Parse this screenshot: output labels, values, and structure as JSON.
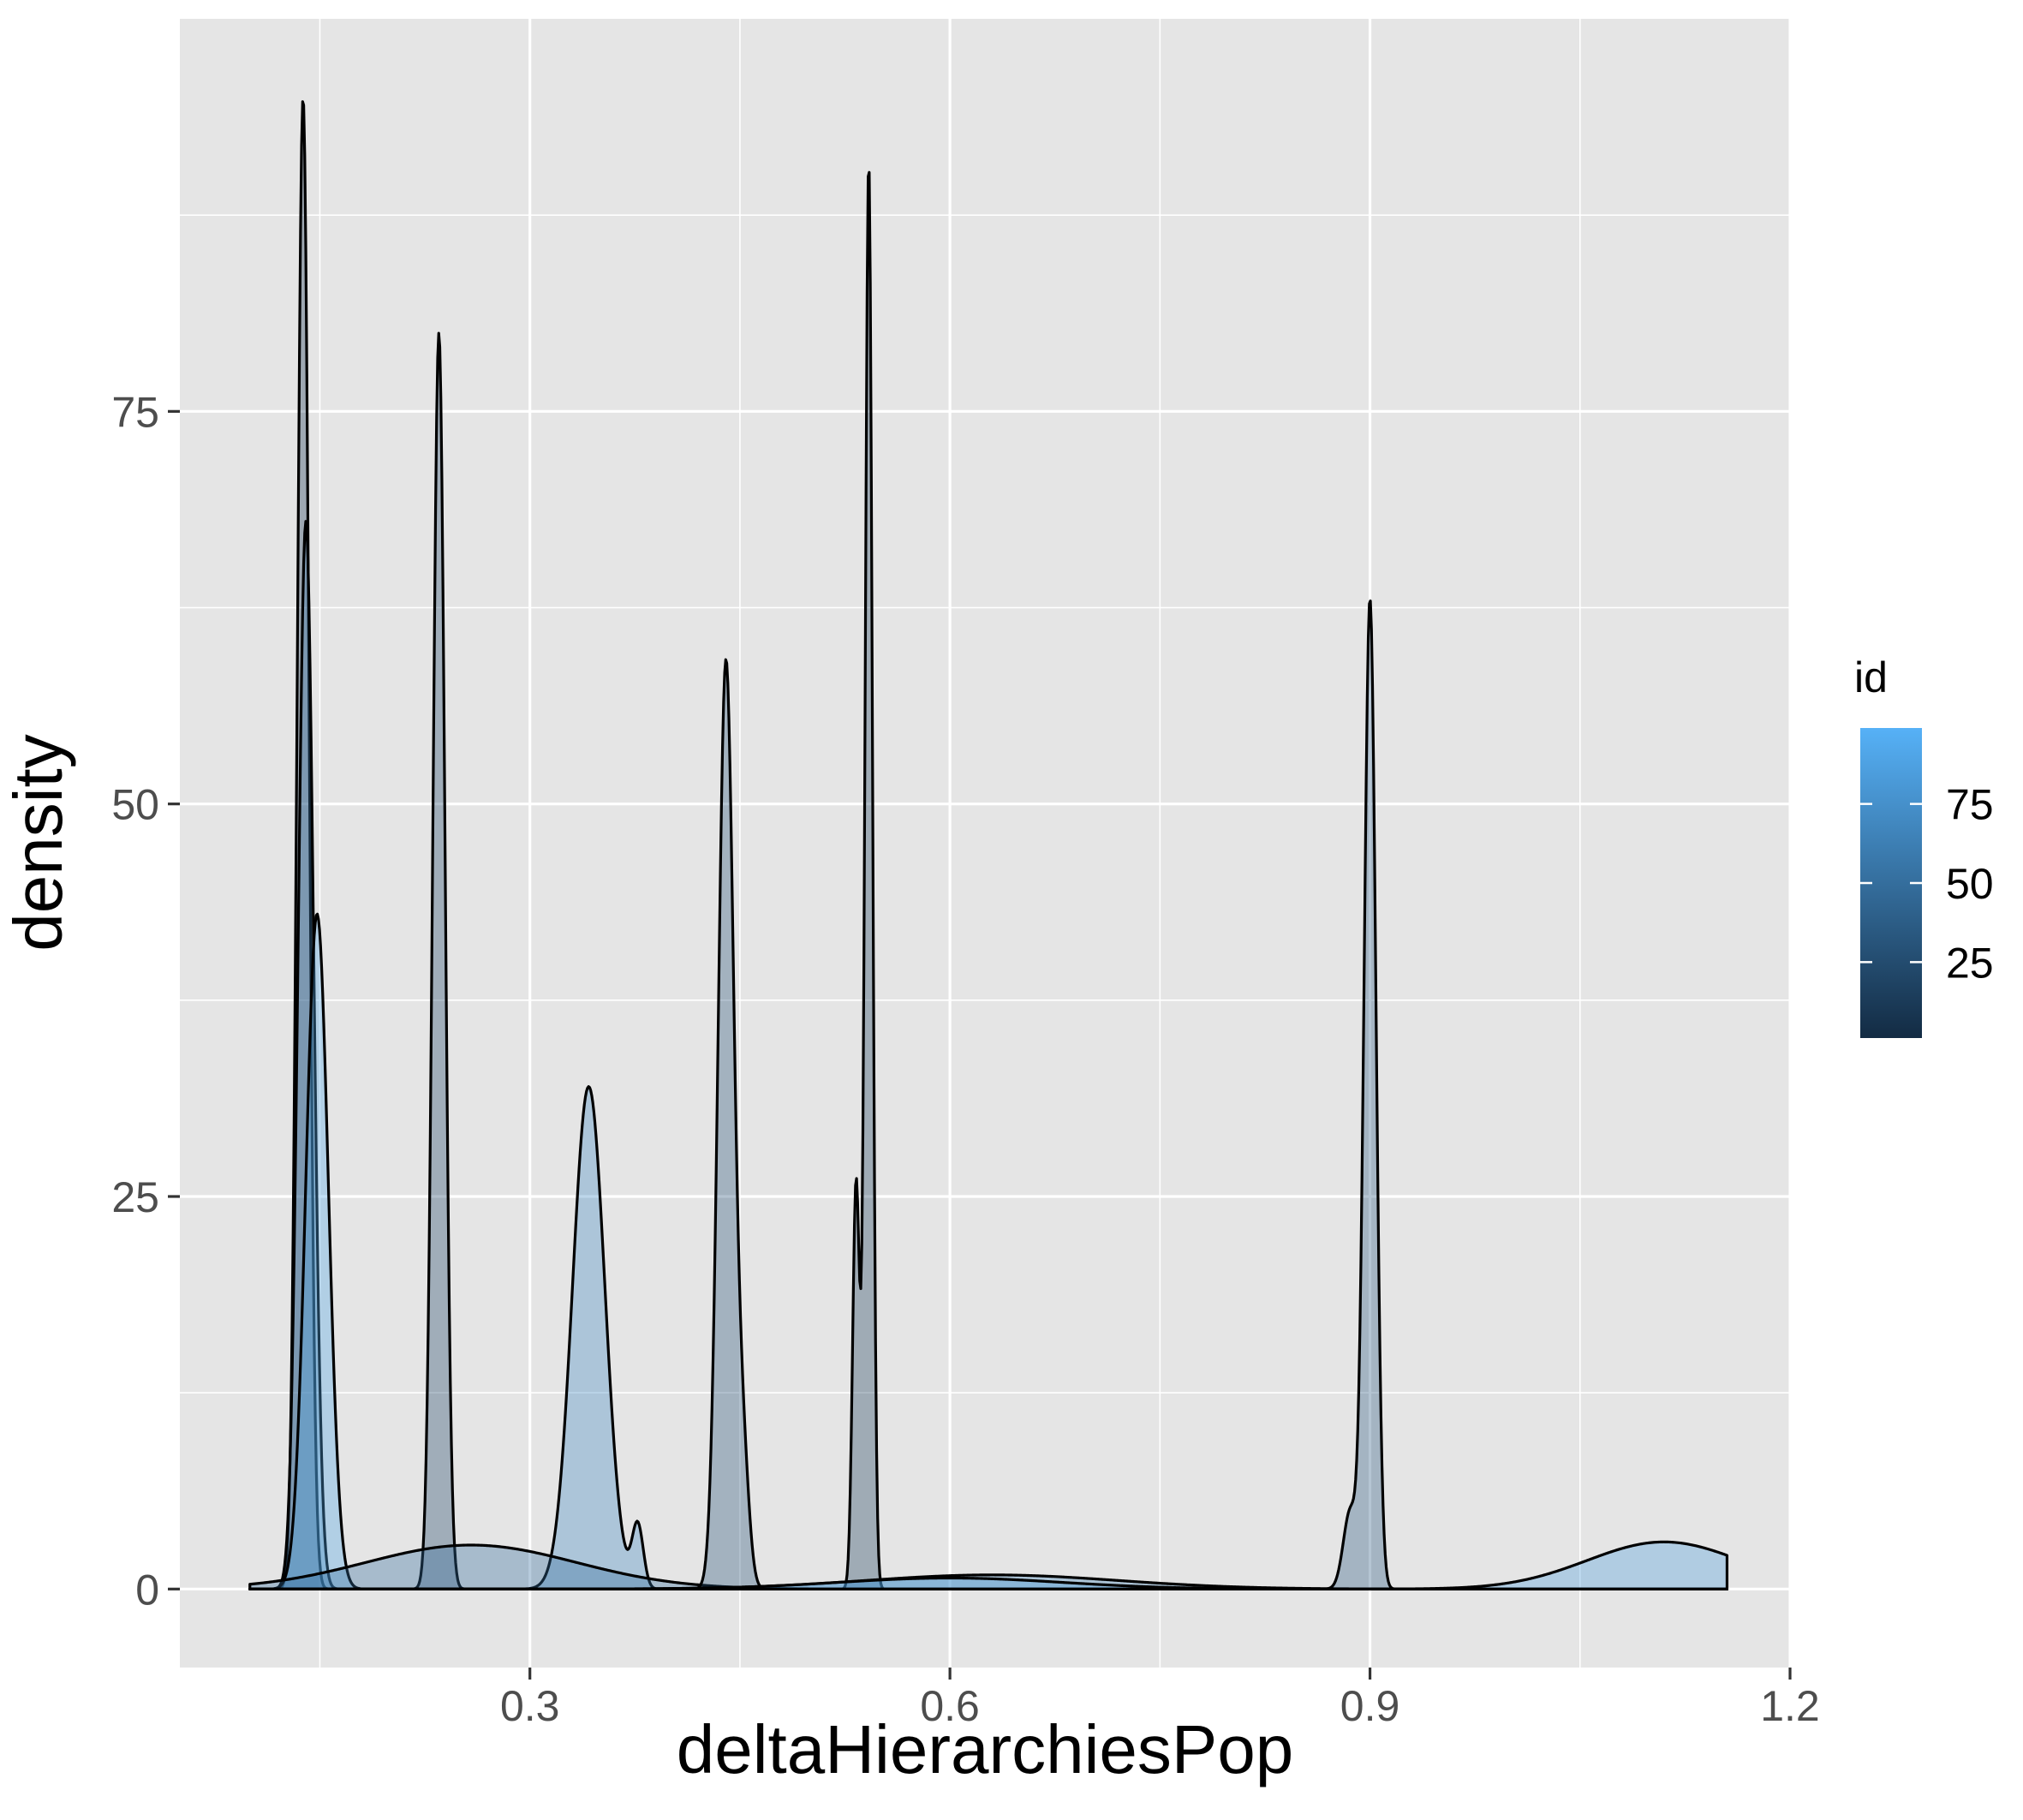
{
  "chart_data": {
    "type": "area",
    "subtype": "density",
    "title": "",
    "xlabel": "deltaHierarchiesPop",
    "ylabel": "density",
    "xlim": [
      0.05,
      1.2
    ],
    "ylim": [
      -5,
      100
    ],
    "x_ticks": [
      {
        "value": 0.3,
        "label": "0.3"
      },
      {
        "value": 0.6,
        "label": "0.6"
      },
      {
        "value": 0.9,
        "label": "0.9"
      },
      {
        "value": 1.2,
        "label": "1.2"
      }
    ],
    "y_ticks": [
      {
        "value": 0,
        "label": "0"
      },
      {
        "value": 25,
        "label": "25"
      },
      {
        "value": 50,
        "label": "50"
      },
      {
        "value": 75,
        "label": "75"
      }
    ],
    "grid": true,
    "background": "#e5e5e5",
    "fill_alpha": 0.35,
    "outline_color": "#000000",
    "x_domain": [
      0.1,
      1.155
    ],
    "legend": {
      "title": "id",
      "position": "right",
      "type": "colorbar",
      "range": [
        1,
        99
      ],
      "ticks": [
        {
          "value": 25,
          "label": "25"
        },
        {
          "value": 50,
          "label": "50"
        },
        {
          "value": 75,
          "label": "75"
        }
      ],
      "low_color": "#132b43",
      "high_color": "#56b1f7"
    },
    "series": [
      {
        "id": 10,
        "peaks": [
          {
            "mu": 0.138,
            "sigma": 0.0042,
            "height": 95
          }
        ]
      },
      {
        "id": 60,
        "peaks": [
          {
            "mu": 0.14,
            "sigma": 0.0055,
            "height": 68
          }
        ]
      },
      {
        "id": 90,
        "peaks": [
          {
            "mu": 0.148,
            "sigma": 0.008,
            "height": 43
          }
        ]
      },
      {
        "id": 20,
        "peaks": [
          {
            "mu": 0.235,
            "sigma": 0.0043,
            "height": 80
          }
        ]
      },
      {
        "id": 70,
        "peaks": [
          {
            "mu": 0.342,
            "sigma": 0.0115,
            "height": 32
          },
          {
            "mu": 0.377,
            "sigma": 0.004,
            "height": 4
          }
        ]
      },
      {
        "id": 50,
        "peaks": [
          {
            "mu": 0.258,
            "sigma": 0.075,
            "height": 2.8
          }
        ]
      },
      {
        "id": 30,
        "peaks": [
          {
            "mu": 0.44,
            "sigma": 0.0055,
            "height": 59
          },
          {
            "mu": 0.452,
            "sigma": 0.0045,
            "height": 8
          }
        ]
      },
      {
        "id": 15,
        "peaks": [
          {
            "mu": 0.542,
            "sigma": 0.0026,
            "height": 91
          },
          {
            "mu": 0.533,
            "sigma": 0.0025,
            "height": 26
          }
        ]
      },
      {
        "id": 65,
        "peaks": [
          {
            "mu": 0.63,
            "sigma": 0.09,
            "height": 0.9
          }
        ]
      },
      {
        "id": 35,
        "peaks": [
          {
            "mu": 0.9,
            "sigma": 0.0042,
            "height": 63
          },
          {
            "mu": 0.886,
            "sigma": 0.005,
            "height": 5
          }
        ]
      },
      {
        "id": 85,
        "peaks": [
          {
            "mu": 1.11,
            "sigma": 0.055,
            "height": 3.0
          },
          {
            "mu": 0.6,
            "sigma": 0.08,
            "height": 0.7
          }
        ]
      }
    ]
  }
}
